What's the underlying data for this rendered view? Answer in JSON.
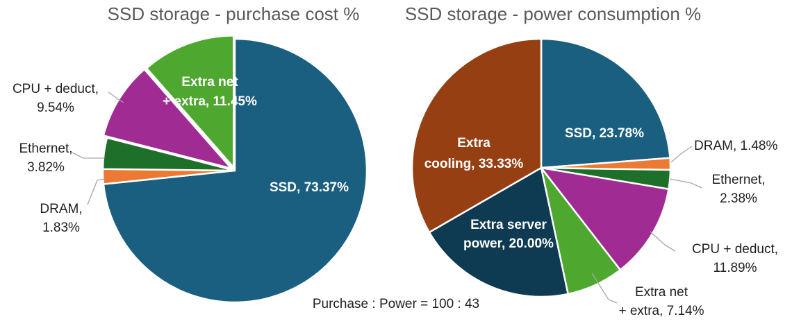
{
  "chart_data": [
    {
      "type": "pie",
      "title": "SSD storage - purchase cost %",
      "slices": [
        {
          "name": "SSD",
          "value": 73.37,
          "label": "SSD, 73.37%",
          "color": "#1a5e80"
        },
        {
          "name": "DRAM",
          "value": 1.83,
          "label": "DRAM, 1.83%",
          "color": "#ec7a34"
        },
        {
          "name": "Ethernet",
          "value": 3.82,
          "label": "Ethernet, 3.82%",
          "color": "#1e6f2a"
        },
        {
          "name": "CPU + deduct",
          "value": 9.54,
          "label": "CPU + deduct, 9.54%",
          "color": "#a02b93"
        },
        {
          "name": "Extra net + extra",
          "value": 11.45,
          "label": "Extra net + extra, 11.45%",
          "color": "#4ea72e"
        }
      ]
    },
    {
      "type": "pie",
      "title": "SSD storage - power consumption %",
      "slices": [
        {
          "name": "SSD",
          "value": 23.78,
          "label": "SSD, 23.78%",
          "color": "#1a5e80"
        },
        {
          "name": "DRAM",
          "value": 1.48,
          "label": "DRAM, 1.48%",
          "color": "#ec7a34"
        },
        {
          "name": "Ethernet",
          "value": 2.38,
          "label": "Ethernet, 2.38%",
          "color": "#1e6f2a"
        },
        {
          "name": "CPU + deduct",
          "value": 11.89,
          "label": "CPU + deduct, 11.89%",
          "color": "#a02b93"
        },
        {
          "name": "Extra net + extra",
          "value": 7.14,
          "label": "Extra net + extra, 7.14%",
          "color": "#4ea72e"
        },
        {
          "name": "Extra server power",
          "value": 20.0,
          "label": "Extra server power, 20.00%",
          "color": "#0e3a52"
        },
        {
          "name": "Extra cooling",
          "value": 33.33,
          "label": "Extra cooling, 33.33%",
          "color": "#953f12"
        }
      ]
    }
  ],
  "caption": "Purchase : Power = 100 : 43"
}
